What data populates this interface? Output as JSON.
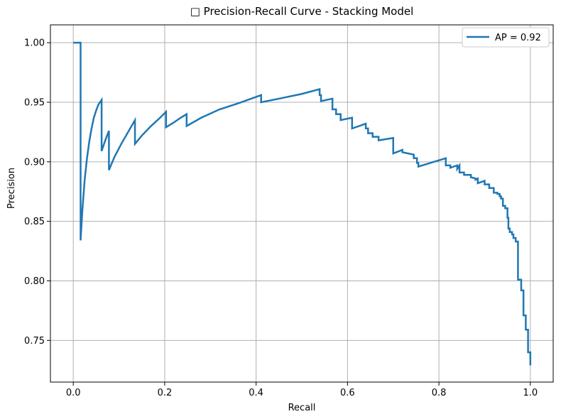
{
  "chart_data": {
    "type": "line",
    "title": "□ Precision-Recall Curve - Stacking Model",
    "xlabel": "Recall",
    "ylabel": "Precision",
    "xlim": [
      -0.05,
      1.05
    ],
    "ylim": [
      0.715,
      1.015
    ],
    "xticks": [
      0.0,
      0.2,
      0.4,
      0.6,
      0.8,
      1.0
    ],
    "xtick_labels": [
      "0.0",
      "0.2",
      "0.4",
      "0.6",
      "0.8",
      "1.0"
    ],
    "yticks": [
      0.75,
      0.8,
      0.85,
      0.9,
      0.95,
      1.0
    ],
    "ytick_labels": [
      "0.75",
      "0.80",
      "0.85",
      "0.90",
      "0.95",
      "1.00"
    ],
    "grid": true,
    "legend_position": "upper-right",
    "series": [
      {
        "name": "AP = 0.92",
        "color": "#1f77b4",
        "points": [
          [
            0.0,
            1.0
          ],
          [
            0.016,
            1.0
          ],
          [
            0.016,
            0.834
          ],
          [
            0.02,
            0.86
          ],
          [
            0.025,
            0.885
          ],
          [
            0.03,
            0.903
          ],
          [
            0.035,
            0.917
          ],
          [
            0.04,
            0.928
          ],
          [
            0.045,
            0.937
          ],
          [
            0.05,
            0.943
          ],
          [
            0.055,
            0.948
          ],
          [
            0.062,
            0.952
          ],
          [
            0.062,
            0.909
          ],
          [
            0.07,
            0.918
          ],
          [
            0.078,
            0.926
          ],
          [
            0.078,
            0.893
          ],
          [
            0.09,
            0.904
          ],
          [
            0.105,
            0.915
          ],
          [
            0.12,
            0.925
          ],
          [
            0.135,
            0.935
          ],
          [
            0.135,
            0.915
          ],
          [
            0.15,
            0.922
          ],
          [
            0.17,
            0.93
          ],
          [
            0.19,
            0.937
          ],
          [
            0.203,
            0.942
          ],
          [
            0.203,
            0.929
          ],
          [
            0.22,
            0.933
          ],
          [
            0.235,
            0.937
          ],
          [
            0.248,
            0.94
          ],
          [
            0.248,
            0.93
          ],
          [
            0.28,
            0.937
          ],
          [
            0.32,
            0.944
          ],
          [
            0.36,
            0.949
          ],
          [
            0.411,
            0.956
          ],
          [
            0.411,
            0.95
          ],
          [
            0.45,
            0.953
          ],
          [
            0.5,
            0.957
          ],
          [
            0.539,
            0.961
          ],
          [
            0.539,
            0.956
          ],
          [
            0.542,
            0.956
          ],
          [
            0.542,
            0.951
          ],
          [
            0.567,
            0.953
          ],
          [
            0.567,
            0.944
          ],
          [
            0.575,
            0.944
          ],
          [
            0.575,
            0.94
          ],
          [
            0.585,
            0.94
          ],
          [
            0.585,
            0.935
          ],
          [
            0.61,
            0.937
          ],
          [
            0.61,
            0.928
          ],
          [
            0.64,
            0.932
          ],
          [
            0.64,
            0.928
          ],
          [
            0.645,
            0.928
          ],
          [
            0.645,
            0.924
          ],
          [
            0.655,
            0.924
          ],
          [
            0.655,
            0.921
          ],
          [
            0.668,
            0.921
          ],
          [
            0.668,
            0.918
          ],
          [
            0.7,
            0.92
          ],
          [
            0.7,
            0.907
          ],
          [
            0.72,
            0.91
          ],
          [
            0.72,
            0.908
          ],
          [
            0.745,
            0.906
          ],
          [
            0.745,
            0.903
          ],
          [
            0.752,
            0.903
          ],
          [
            0.752,
            0.899
          ],
          [
            0.755,
            0.899
          ],
          [
            0.755,
            0.896
          ],
          [
            0.815,
            0.903
          ],
          [
            0.815,
            0.897
          ],
          [
            0.825,
            0.897
          ],
          [
            0.825,
            0.895
          ],
          [
            0.84,
            0.897
          ],
          [
            0.84,
            0.894
          ],
          [
            0.845,
            0.897
          ],
          [
            0.845,
            0.891
          ],
          [
            0.855,
            0.891
          ],
          [
            0.855,
            0.889
          ],
          [
            0.87,
            0.889
          ],
          [
            0.87,
            0.887
          ],
          [
            0.88,
            0.886
          ],
          [
            0.88,
            0.885
          ],
          [
            0.885,
            0.886
          ],
          [
            0.885,
            0.882
          ],
          [
            0.9,
            0.884
          ],
          [
            0.9,
            0.881
          ],
          [
            0.91,
            0.881
          ],
          [
            0.91,
            0.878
          ],
          [
            0.92,
            0.878
          ],
          [
            0.92,
            0.874
          ],
          [
            0.928,
            0.874
          ],
          [
            0.928,
            0.873
          ],
          [
            0.933,
            0.873
          ],
          [
            0.933,
            0.871
          ],
          [
            0.936,
            0.871
          ],
          [
            0.936,
            0.869
          ],
          [
            0.94,
            0.869
          ],
          [
            0.94,
            0.863
          ],
          [
            0.945,
            0.863
          ],
          [
            0.945,
            0.861
          ],
          [
            0.95,
            0.861
          ],
          [
            0.95,
            0.853
          ],
          [
            0.952,
            0.853
          ],
          [
            0.952,
            0.844
          ],
          [
            0.955,
            0.844
          ],
          [
            0.955,
            0.841
          ],
          [
            0.96,
            0.841
          ],
          [
            0.96,
            0.839
          ],
          [
            0.963,
            0.839
          ],
          [
            0.963,
            0.836
          ],
          [
            0.968,
            0.836
          ],
          [
            0.968,
            0.833
          ],
          [
            0.973,
            0.833
          ],
          [
            0.973,
            0.801
          ],
          [
            0.98,
            0.801
          ],
          [
            0.98,
            0.792
          ],
          [
            0.985,
            0.792
          ],
          [
            0.985,
            0.771
          ],
          [
            0.99,
            0.771
          ],
          [
            0.99,
            0.759
          ],
          [
            0.995,
            0.759
          ],
          [
            0.995,
            0.74
          ],
          [
            1.0,
            0.74
          ],
          [
            1.0,
            0.729
          ]
        ]
      }
    ]
  }
}
